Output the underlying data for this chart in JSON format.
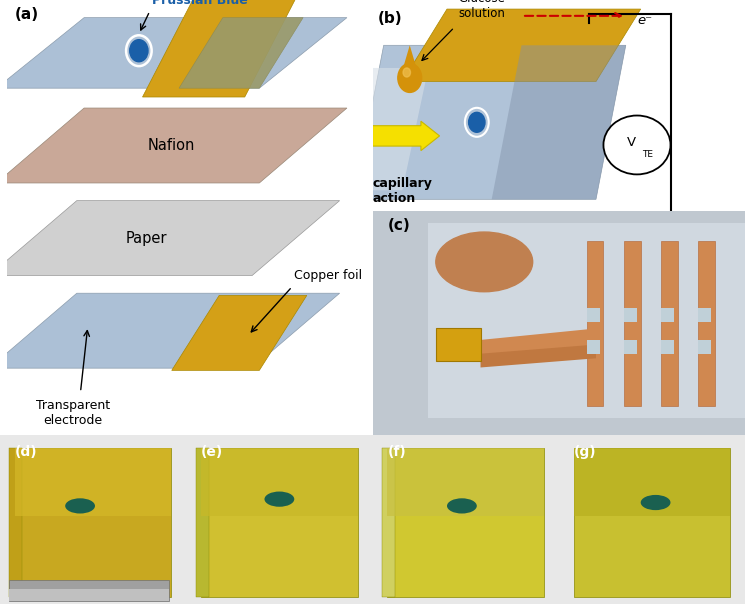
{
  "panel_a_label": "(a)",
  "panel_b_label": "(b)",
  "panel_c_label": "(c)",
  "panel_d_label": "(d)",
  "panel_e_label": "(e)",
  "panel_f_label": "(f)",
  "panel_g_label": "(g)",
  "prussian_blue_label": "Prussian Blue",
  "nafion_label": "Nafion",
  "paper_label": "Paper",
  "copper_foil_label": "Copper foil",
  "transparent_electrode_label": "Transparent\nelectrode",
  "glucose_solution_label": "Glucose\nsolution",
  "capillary_action_label": "capillary\naction",
  "electron_label": "e⁻",
  "vte_label": "V",
  "vte_sub_label": "TE",
  "color_blue_layer": "#a8bdd4",
  "color_nafion": "#c9a898",
  "color_paper": "#d0d0d0",
  "color_copper": "#d4a017",
  "color_prussian_blue_dot": "#1a5fa8",
  "color_prussian_blue_text": "#1a5fa8",
  "color_olive": "#9a9a6a",
  "color_arrow_red": "#cc0000",
  "color_arrow_yellow": "#f0e000",
  "color_bg_white": "#ffffff"
}
